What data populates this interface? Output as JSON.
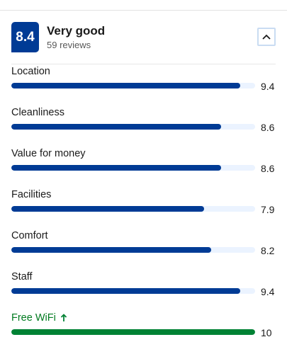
{
  "header": {
    "score": "8.4",
    "rating_word": "Very good",
    "review_count": "59 reviews",
    "collapse_icon": "chevron-up-icon"
  },
  "categories": [
    {
      "label": "Location",
      "score": "9.4",
      "value": 9.4,
      "highlight": false
    },
    {
      "label": "Cleanliness",
      "score": "8.6",
      "value": 8.6,
      "highlight": false
    },
    {
      "label": "Value for money",
      "score": "8.6",
      "value": 8.6,
      "highlight": false
    },
    {
      "label": "Facilities",
      "score": "7.9",
      "value": 7.9,
      "highlight": false
    },
    {
      "label": "Comfort",
      "score": "8.2",
      "value": 8.2,
      "highlight": false
    },
    {
      "label": "Staff",
      "score": "9.4",
      "value": 9.4,
      "highlight": false
    },
    {
      "label": "Free WiFi",
      "score": "10",
      "value": 10,
      "highlight": true
    }
  ],
  "scale_max": 10,
  "colors": {
    "brand": "#003b95",
    "highlight": "#008234",
    "track": "#ebf3ff"
  }
}
